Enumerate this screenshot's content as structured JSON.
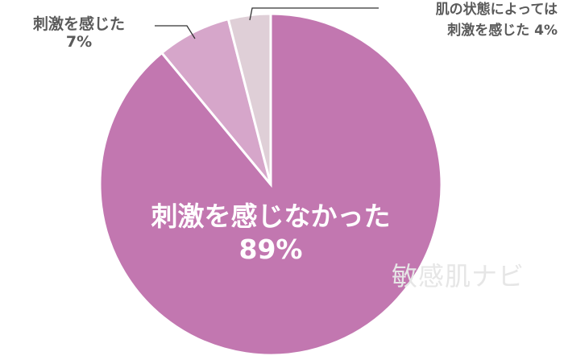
{
  "chart_data": {
    "type": "pie",
    "start": "12 o'clock, counter-clockwise for small slices",
    "slices": [
      {
        "label": "刺激を感じなかった",
        "value": 89,
        "value_label": "89%",
        "color": "#c277b0"
      },
      {
        "label": "刺激を感じた",
        "value": 7,
        "value_label": "7%",
        "color": "#d6a6ca"
      },
      {
        "label_line1": "肌の状態によっては",
        "label_line2": "刺激を感じた",
        "value": 4,
        "value_label": "4%",
        "color": "#dfcfd7"
      }
    ]
  },
  "watermark": "敏感肌ナビ"
}
